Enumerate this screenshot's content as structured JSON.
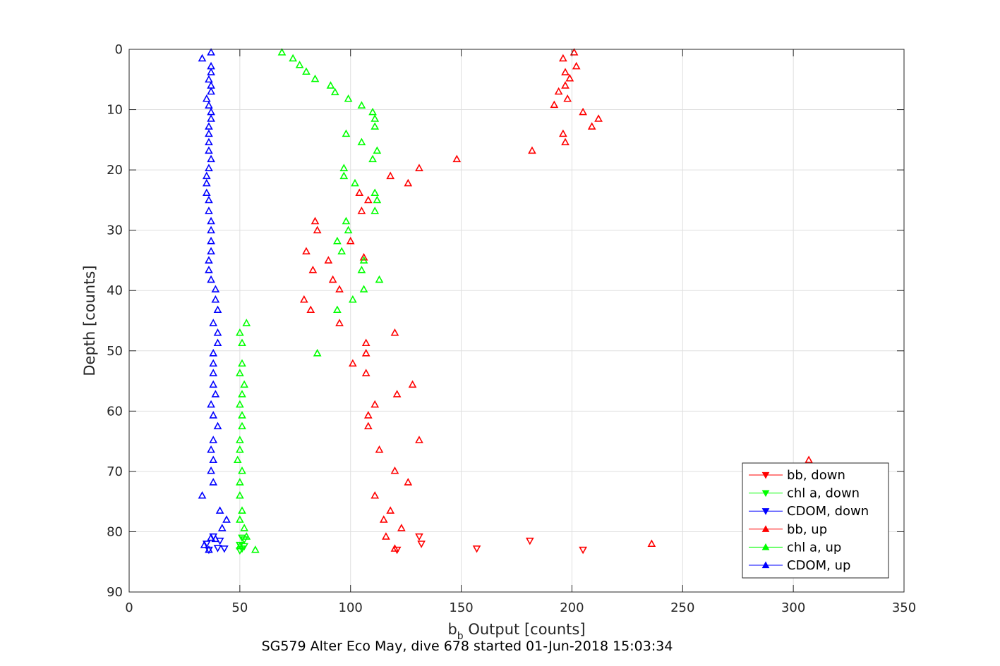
{
  "chart_data": {
    "type": "scatter",
    "title": "SG579 Alter Eco May, dive 678 started 01-Jun-2018 15:03:34",
    "xlabel": {
      "main": "b",
      "sub": "b",
      "rest": " Output [counts]"
    },
    "ylabel": "Depth [counts]",
    "xlim": [
      0,
      350
    ],
    "ylim": [
      0,
      90
    ],
    "y_reversed": true,
    "xticks": [
      0,
      50,
      100,
      150,
      200,
      250,
      300,
      350
    ],
    "yticks": [
      0,
      10,
      20,
      30,
      40,
      50,
      60,
      70,
      80,
      90
    ],
    "grid": true,
    "legend_position": "bottom-right",
    "series": [
      {
        "name": "bb, down",
        "color": "#ff0000",
        "marker": "triangle-down",
        "points": [
          [
            131,
            80.8
          ],
          [
            132,
            82
          ],
          [
            157,
            82.8
          ],
          [
            181,
            81.5
          ],
          [
            205,
            83
          ],
          [
            121,
            83
          ]
        ]
      },
      {
        "name": "chl a, down",
        "color": "#00ff00",
        "marker": "triangle-down",
        "points": [
          [
            51,
            81
          ],
          [
            52,
            81.3
          ],
          [
            50,
            82.2
          ],
          [
            51,
            82.8
          ],
          [
            50,
            83.1
          ],
          [
            52,
            82.4
          ]
        ]
      },
      {
        "name": "CDOM, down",
        "color": "#0000ff",
        "marker": "triangle-down",
        "points": [
          [
            38,
            80.8
          ],
          [
            35,
            82
          ],
          [
            41,
            81.5
          ],
          [
            40,
            82.7
          ],
          [
            36,
            83
          ],
          [
            43,
            82.8
          ]
        ]
      },
      {
        "name": "bb, up",
        "color": "#ff0000",
        "marker": "triangle-up",
        "points": [
          [
            201,
            0.5
          ],
          [
            196,
            1.5
          ],
          [
            202,
            2.8
          ],
          [
            197,
            3.8
          ],
          [
            199,
            4.8
          ],
          [
            197,
            6
          ],
          [
            194,
            7
          ],
          [
            198,
            8.2
          ],
          [
            192,
            9.2
          ],
          [
            205,
            10.4
          ],
          [
            212,
            11.5
          ],
          [
            209,
            12.8
          ],
          [
            196,
            14
          ],
          [
            197,
            15.4
          ],
          [
            182,
            16.8
          ],
          [
            148,
            18.2
          ],
          [
            131,
            19.7
          ],
          [
            118,
            21
          ],
          [
            126,
            22.2
          ],
          [
            104,
            23.8
          ],
          [
            108,
            25
          ],
          [
            105,
            26.8
          ],
          [
            84,
            28.5
          ],
          [
            85,
            30
          ],
          [
            100,
            31.8
          ],
          [
            80,
            33.5
          ],
          [
            90,
            35
          ],
          [
            106,
            34.5
          ],
          [
            83,
            36.6
          ],
          [
            92,
            38.2
          ],
          [
            95,
            39.8
          ],
          [
            79,
            41.5
          ],
          [
            82,
            43.2
          ],
          [
            95,
            45.4
          ],
          [
            120,
            47
          ],
          [
            107,
            48.7
          ],
          [
            107,
            50.4
          ],
          [
            101,
            52.1
          ],
          [
            107,
            53.7
          ],
          [
            128,
            55.6
          ],
          [
            121,
            57.2
          ],
          [
            111,
            58.9
          ],
          [
            108,
            60.7
          ],
          [
            108,
            62.5
          ],
          [
            131,
            64.8
          ],
          [
            113,
            66.4
          ],
          [
            307,
            68.1
          ],
          [
            120,
            69.9
          ],
          [
            126,
            71.8
          ],
          [
            111,
            74
          ],
          [
            118,
            76.5
          ],
          [
            115,
            78
          ],
          [
            123,
            79.4
          ],
          [
            116,
            80.8
          ],
          [
            236,
            82
          ],
          [
            120,
            82.8
          ]
        ]
      },
      {
        "name": "chl a, up",
        "color": "#00ff00",
        "marker": "triangle-up",
        "points": [
          [
            69,
            0.5
          ],
          [
            74,
            1.5
          ],
          [
            77,
            2.6
          ],
          [
            80,
            3.7
          ],
          [
            84,
            4.9
          ],
          [
            91,
            6
          ],
          [
            93,
            7.1
          ],
          [
            99,
            8.2
          ],
          [
            105,
            9.3
          ],
          [
            110,
            10.4
          ],
          [
            111,
            11.5
          ],
          [
            111,
            12.8
          ],
          [
            98,
            14
          ],
          [
            105,
            15.4
          ],
          [
            112,
            16.8
          ],
          [
            110,
            18.2
          ],
          [
            97,
            19.7
          ],
          [
            97,
            21
          ],
          [
            102,
            22.2
          ],
          [
            111,
            23.8
          ],
          [
            112,
            25
          ],
          [
            111,
            26.8
          ],
          [
            98,
            28.5
          ],
          [
            99,
            30
          ],
          [
            94,
            31.8
          ],
          [
            96,
            33.5
          ],
          [
            106,
            35
          ],
          [
            105,
            36.6
          ],
          [
            113,
            38.2
          ],
          [
            106,
            39.8
          ],
          [
            101,
            41.5
          ],
          [
            94,
            43.2
          ],
          [
            53,
            45.4
          ],
          [
            50,
            47
          ],
          [
            51,
            48.7
          ],
          [
            85,
            50.4
          ],
          [
            51,
            52.1
          ],
          [
            50,
            53.7
          ],
          [
            52,
            55.6
          ],
          [
            51,
            57.2
          ],
          [
            50,
            58.9
          ],
          [
            51,
            60.7
          ],
          [
            51,
            62.5
          ],
          [
            50,
            64.8
          ],
          [
            50,
            66.4
          ],
          [
            49,
            68.1
          ],
          [
            51,
            69.9
          ],
          [
            50,
            71.8
          ],
          [
            50,
            74
          ],
          [
            51,
            76.5
          ],
          [
            50,
            78
          ],
          [
            52,
            79.4
          ],
          [
            53,
            80.8
          ],
          [
            57,
            83
          ],
          [
            50,
            82.4
          ]
        ]
      },
      {
        "name": "CDOM, up",
        "color": "#0000ff",
        "marker": "triangle-up",
        "points": [
          [
            37,
            0.5
          ],
          [
            33,
            1.5
          ],
          [
            37,
            2.8
          ],
          [
            37,
            3.8
          ],
          [
            36,
            5
          ],
          [
            37,
            6
          ],
          [
            37,
            7
          ],
          [
            35,
            8.2
          ],
          [
            36,
            9.3
          ],
          [
            37,
            10.4
          ],
          [
            37,
            11.5
          ],
          [
            36,
            12.8
          ],
          [
            36,
            14
          ],
          [
            36,
            15.4
          ],
          [
            36,
            16.8
          ],
          [
            37,
            18.2
          ],
          [
            36,
            19.7
          ],
          [
            35,
            21
          ],
          [
            35,
            22.2
          ],
          [
            35,
            23.8
          ],
          [
            36,
            25
          ],
          [
            36,
            26.8
          ],
          [
            37,
            28.5
          ],
          [
            37,
            30
          ],
          [
            37,
            31.8
          ],
          [
            37,
            33.5
          ],
          [
            36,
            35
          ],
          [
            36,
            36.6
          ],
          [
            37,
            38.2
          ],
          [
            39,
            39.8
          ],
          [
            39,
            41.5
          ],
          [
            40,
            43.2
          ],
          [
            38,
            45.4
          ],
          [
            40,
            47
          ],
          [
            40,
            48.7
          ],
          [
            38,
            50.4
          ],
          [
            38,
            52.1
          ],
          [
            38,
            53.7
          ],
          [
            38,
            55.6
          ],
          [
            39,
            57.2
          ],
          [
            37,
            58.9
          ],
          [
            38,
            60.7
          ],
          [
            40,
            62.5
          ],
          [
            38,
            64.8
          ],
          [
            37,
            66.4
          ],
          [
            38,
            68.1
          ],
          [
            37,
            69.9
          ],
          [
            38,
            71.8
          ],
          [
            33,
            74
          ],
          [
            41,
            76.5
          ],
          [
            44,
            78
          ],
          [
            42,
            79.4
          ],
          [
            37,
            81
          ],
          [
            34,
            82.2
          ],
          [
            39,
            81.2
          ],
          [
            36,
            83
          ]
        ]
      }
    ]
  }
}
